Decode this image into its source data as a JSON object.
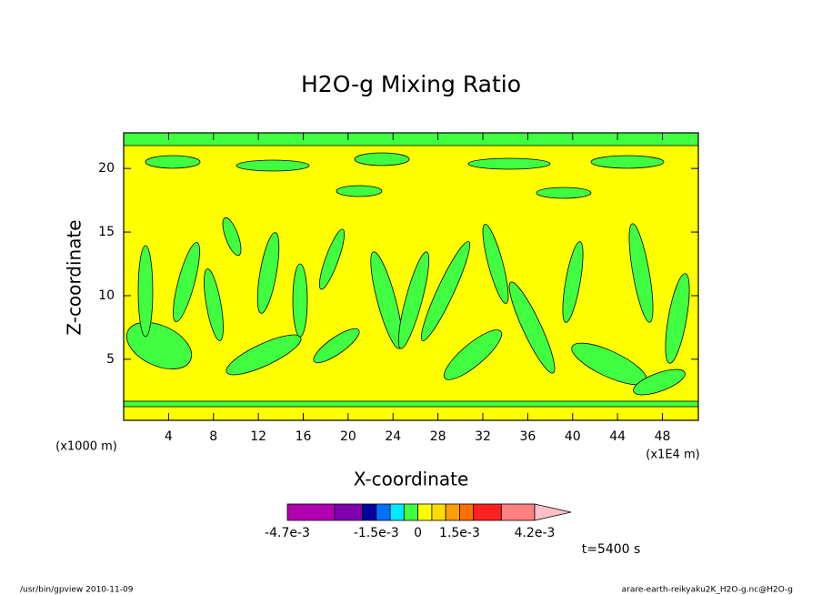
{
  "chart_data": {
    "type": "contour",
    "title": "H2O-g Mixing Ratio",
    "xlabel": "X-coordinate",
    "ylabel": "Z-coordinate",
    "x_unit_label": "(x1E4 m)",
    "y_unit_label": "(x1000 m)",
    "xlim": [
      0,
      51.2
    ],
    "ylim": [
      0.2,
      22.8
    ],
    "xticks": [
      4,
      8,
      12,
      16,
      20,
      24,
      28,
      32,
      36,
      40,
      44,
      48
    ],
    "yticks": [
      5,
      10,
      15,
      20
    ],
    "colorbar": {
      "lim": [
        -0.0047,
        0.0042
      ],
      "levels": [
        -0.0047,
        -0.003,
        -0.002,
        -0.0015,
        -0.001,
        -0.0005,
        0,
        0.0005,
        0.001,
        0.0015,
        0.002,
        0.003,
        0.0042
      ],
      "colors": [
        "#b000b0",
        "#8000b0",
        "#0000a0",
        "#0070ff",
        "#00e8ff",
        "#40ff40",
        "#ffff00",
        "#ffdc00",
        "#ffa000",
        "#ff7000",
        "#ff2020",
        "#ff8080"
      ],
      "extend_color": "#ffc0c8",
      "ticks": [
        {
          "value": -0.0047,
          "label": "-4.7e-3"
        },
        {
          "value": -0.0015,
          "label": "-1.5e-3"
        },
        0,
        {
          "value": 0.0015,
          "label": "1.5e-3"
        },
        {
          "value": 0.0042,
          "label": "4.2e-3"
        }
      ]
    },
    "annotation": "t=5400 s",
    "footer_left": "/usr/bin/gpview  2010-11-09",
    "footer_right": "arare-earth-reikyaku2K_H2O-g.nc@H2O-g"
  }
}
